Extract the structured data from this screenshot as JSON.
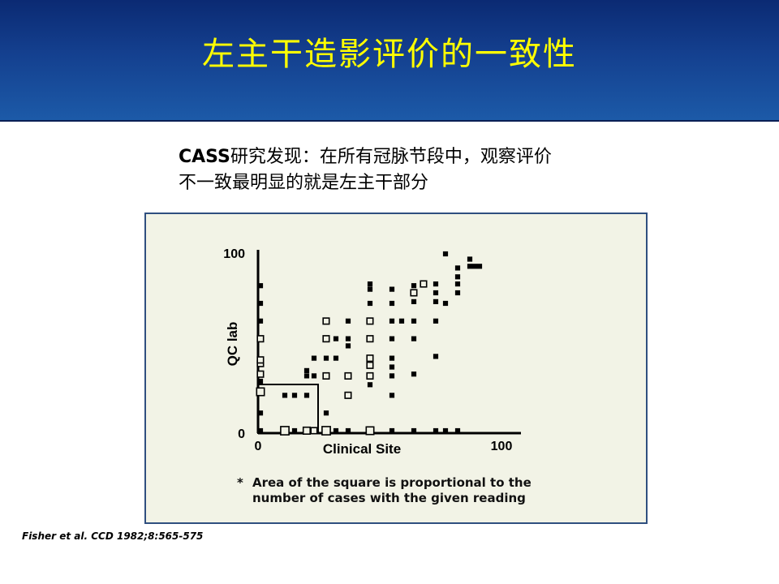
{
  "header": {
    "title": "左主干造影评价的一致性"
  },
  "subtitle": {
    "bold_part": "CASS",
    "line1_rest": "研究发现：在所有冠脉节段中，观察评价",
    "line2": "不一致最明显的就是左主干部分"
  },
  "footnote": {
    "star": "*",
    "text": "Area of the square is proportional to the number of cases with the given reading"
  },
  "citation": "Fisher et al. CCD 1982;8:565-575",
  "chart_data": {
    "type": "scatter",
    "xlabel": "Clinical Site",
    "ylabel": "QC lab",
    "xlim": [
      0,
      100
    ],
    "ylim": [
      0,
      100
    ],
    "x_tick_labels": [
      "0",
      "100"
    ],
    "y_tick_labels": [
      "0",
      "100"
    ],
    "note": "Area of the square is proportional to the number of cases with the given reading",
    "points": [
      {
        "x": 0,
        "y": 0,
        "n": 1
      },
      {
        "x": 0,
        "y": 10,
        "n": 1
      },
      {
        "x": 0,
        "y": 22,
        "n": 4
      },
      {
        "x": 0,
        "y": 28,
        "n": 1
      },
      {
        "x": 0,
        "y": 32,
        "n": 2
      },
      {
        "x": 0,
        "y": 38,
        "n": 2
      },
      {
        "x": 0,
        "y": 40,
        "n": 2
      },
      {
        "x": 0,
        "y": 52,
        "n": 2
      },
      {
        "x": 0,
        "y": 62,
        "n": 1
      },
      {
        "x": 0,
        "y": 72,
        "n": 1
      },
      {
        "x": 0,
        "y": 82,
        "n": 1
      },
      {
        "x": 10,
        "y": 0,
        "n": 5
      },
      {
        "x": 10,
        "y": 20,
        "n": 1
      },
      {
        "x": 14,
        "y": 0,
        "n": 1
      },
      {
        "x": 14,
        "y": 20,
        "n": 1
      },
      {
        "x": 19,
        "y": 0,
        "n": 3
      },
      {
        "x": 19,
        "y": 20,
        "n": 1
      },
      {
        "x": 19,
        "y": 31,
        "n": 1
      },
      {
        "x": 19,
        "y": 34,
        "n": 1
      },
      {
        "x": 22,
        "y": 0,
        "n": 2
      },
      {
        "x": 22,
        "y": 31,
        "n": 1
      },
      {
        "x": 22,
        "y": 41,
        "n": 1
      },
      {
        "x": 27,
        "y": 0,
        "n": 5
      },
      {
        "x": 27,
        "y": 10,
        "n": 1
      },
      {
        "x": 27,
        "y": 31,
        "n": 2
      },
      {
        "x": 27,
        "y": 41,
        "n": 1
      },
      {
        "x": 27,
        "y": 52,
        "n": 2
      },
      {
        "x": 27,
        "y": 62,
        "n": 2
      },
      {
        "x": 31,
        "y": 0,
        "n": 1
      },
      {
        "x": 31,
        "y": 41,
        "n": 1
      },
      {
        "x": 31,
        "y": 52,
        "n": 1
      },
      {
        "x": 36,
        "y": 0,
        "n": 1
      },
      {
        "x": 36,
        "y": 20,
        "n": 2
      },
      {
        "x": 36,
        "y": 31,
        "n": 2
      },
      {
        "x": 36,
        "y": 48,
        "n": 1
      },
      {
        "x": 36,
        "y": 52,
        "n": 1
      },
      {
        "x": 36,
        "y": 62,
        "n": 1
      },
      {
        "x": 45,
        "y": 0,
        "n": 4
      },
      {
        "x": 45,
        "y": 26,
        "n": 1
      },
      {
        "x": 45,
        "y": 31,
        "n": 2
      },
      {
        "x": 45,
        "y": 37,
        "n": 2
      },
      {
        "x": 45,
        "y": 41,
        "n": 2
      },
      {
        "x": 45,
        "y": 52,
        "n": 2
      },
      {
        "x": 45,
        "y": 62,
        "n": 2
      },
      {
        "x": 45,
        "y": 72,
        "n": 1
      },
      {
        "x": 45,
        "y": 80,
        "n": 1
      },
      {
        "x": 45,
        "y": 83,
        "n": 1
      },
      {
        "x": 54,
        "y": 0,
        "n": 1
      },
      {
        "x": 54,
        "y": 20,
        "n": 1
      },
      {
        "x": 54,
        "y": 31,
        "n": 1
      },
      {
        "x": 54,
        "y": 36,
        "n": 1
      },
      {
        "x": 54,
        "y": 41,
        "n": 1
      },
      {
        "x": 54,
        "y": 52,
        "n": 1
      },
      {
        "x": 54,
        "y": 62,
        "n": 1
      },
      {
        "x": 54,
        "y": 72,
        "n": 1
      },
      {
        "x": 54,
        "y": 80,
        "n": 1
      },
      {
        "x": 58,
        "y": 62,
        "n": 1
      },
      {
        "x": 63,
        "y": 0,
        "n": 1
      },
      {
        "x": 63,
        "y": 32,
        "n": 1
      },
      {
        "x": 63,
        "y": 52,
        "n": 1
      },
      {
        "x": 63,
        "y": 62,
        "n": 1
      },
      {
        "x": 63,
        "y": 73,
        "n": 1
      },
      {
        "x": 63,
        "y": 78,
        "n": 2
      },
      {
        "x": 63,
        "y": 82,
        "n": 1
      },
      {
        "x": 67,
        "y": 83,
        "n": 2
      },
      {
        "x": 72,
        "y": 0,
        "n": 1
      },
      {
        "x": 72,
        "y": 42,
        "n": 1
      },
      {
        "x": 72,
        "y": 62,
        "n": 1
      },
      {
        "x": 72,
        "y": 73,
        "n": 1
      },
      {
        "x": 72,
        "y": 78,
        "n": 1
      },
      {
        "x": 72,
        "y": 83,
        "n": 1
      },
      {
        "x": 76,
        "y": 0,
        "n": 1
      },
      {
        "x": 76,
        "y": 72,
        "n": 1
      },
      {
        "x": 76,
        "y": 100,
        "n": 1
      },
      {
        "x": 81,
        "y": 0,
        "n": 1
      },
      {
        "x": 81,
        "y": 78,
        "n": 1
      },
      {
        "x": 81,
        "y": 83,
        "n": 1
      },
      {
        "x": 81,
        "y": 87,
        "n": 1
      },
      {
        "x": 81,
        "y": 92,
        "n": 1
      },
      {
        "x": 86,
        "y": 93,
        "n": 1
      },
      {
        "x": 86,
        "y": 97,
        "n": 1
      },
      {
        "x": 88,
        "y": 93,
        "n": 1
      },
      {
        "x": 90,
        "y": 93,
        "n": 1
      }
    ]
  }
}
